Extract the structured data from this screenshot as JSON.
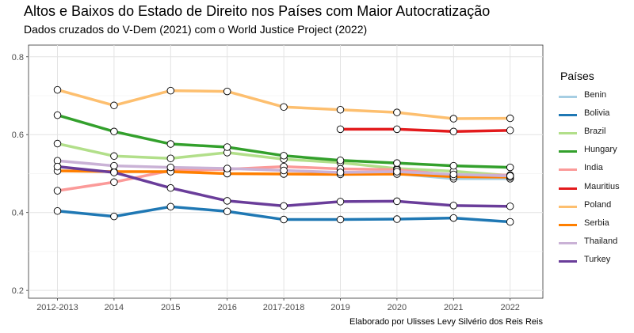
{
  "title": "Altos e Baixos do Estado de Direito nos Países com Maior Autocratização",
  "subtitle": "Dados cruzados do V-Dem (2021) com o World Justice Project (2022)",
  "caption": "Elaborado por Ulisses Levy Silvério dos Reis Reis",
  "chart_data": {
    "type": "line",
    "title": "Altos e Baixos do Estado de Direito nos Países com Maior Autocratização",
    "subtitle": "Dados cruzados do V-Dem (2021) com o World Justice Project (2022)",
    "xlabel": "",
    "ylabel": "",
    "categories": [
      "2012-2013",
      "2014",
      "2015",
      "2016",
      "2017-2018",
      "2019",
      "2020",
      "2021",
      "2022"
    ],
    "y_ticks": [
      "0.2",
      "0.4",
      "0.6",
      "0.8"
    ],
    "ylim": [
      0.18,
      0.83
    ],
    "grid": true,
    "legend_title": "Países",
    "legend_position": "right",
    "series": [
      {
        "name": "Benin",
        "color": "#A6CEE3",
        "values": [
          null,
          null,
          null,
          null,
          null,
          0.504,
          0.5,
          0.487,
          0.487
        ]
      },
      {
        "name": "Bolivia",
        "color": "#1F78B4",
        "values": [
          0.404,
          0.39,
          0.415,
          0.403,
          0.382,
          0.382,
          0.383,
          0.386,
          0.376
        ]
      },
      {
        "name": "Brazil",
        "color": "#B2DF8A",
        "values": [
          0.577,
          0.545,
          0.539,
          0.554,
          0.537,
          0.528,
          0.513,
          0.506,
          0.495
        ]
      },
      {
        "name": "Hungary",
        "color": "#33A02C",
        "values": [
          0.65,
          0.608,
          0.576,
          0.568,
          0.546,
          0.534,
          0.527,
          0.52,
          0.516
        ]
      },
      {
        "name": "India",
        "color": "#FB9A99",
        "values": [
          0.456,
          0.478,
          0.508,
          0.511,
          0.518,
          0.512,
          0.51,
          0.496,
          0.496
        ]
      },
      {
        "name": "Mauritius",
        "color": "#E31A1C",
        "values": [
          null,
          null,
          null,
          null,
          null,
          0.614,
          0.614,
          0.608,
          0.611
        ]
      },
      {
        "name": "Poland",
        "color": "#FDBF6F",
        "values": [
          0.715,
          0.675,
          0.713,
          0.711,
          0.671,
          0.664,
          0.657,
          0.641,
          0.642
        ]
      },
      {
        "name": "Serbia",
        "color": "#FF7F00",
        "values": [
          0.507,
          0.505,
          0.505,
          0.5,
          0.499,
          0.498,
          0.499,
          0.492,
          0.491
        ]
      },
      {
        "name": "Thailand",
        "color": "#CAB2D6",
        "values": [
          0.533,
          0.52,
          0.516,
          0.513,
          0.508,
          0.503,
          0.505,
          0.498,
          0.494
        ]
      },
      {
        "name": "Turkey",
        "color": "#6A3D9A",
        "values": [
          0.518,
          0.503,
          0.463,
          0.43,
          0.417,
          0.428,
          0.429,
          0.418,
          0.416
        ]
      }
    ]
  }
}
